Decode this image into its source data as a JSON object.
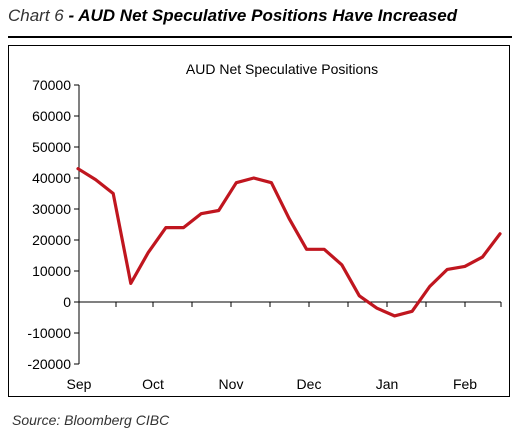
{
  "header": {
    "prefix": "Chart 6",
    "separator": " - ",
    "title": "AUD Net Speculative Positions Have Increased"
  },
  "source": "Source:  Bloomberg CIBC",
  "chart_data": {
    "type": "line",
    "title": "AUD Net Speculative Positions",
    "xlabel": "",
    "ylabel": "",
    "ylim": [
      -20000,
      70000
    ],
    "yticks": [
      70000,
      60000,
      50000,
      40000,
      30000,
      20000,
      10000,
      0,
      -10000,
      -20000
    ],
    "ytick_labels": [
      "70000",
      "60000",
      "50000",
      "40000",
      "30000",
      "20000",
      "10000",
      "0",
      "-10000",
      "-20000"
    ],
    "xtick_labels": [
      "Sep",
      "Oct",
      "Nov",
      "Dec",
      "Jan",
      "Feb"
    ],
    "grid": false,
    "color": "#c0161f",
    "series": [
      {
        "values": [
          43000,
          39500,
          35000,
          6000,
          16000,
          24000,
          24000,
          28500,
          29500,
          38500,
          40000,
          38500,
          27000,
          17000,
          17000,
          12000,
          2000,
          -2000,
          -4500,
          -3000,
          5000,
          10500,
          11500,
          14500,
          22000
        ]
      }
    ]
  }
}
